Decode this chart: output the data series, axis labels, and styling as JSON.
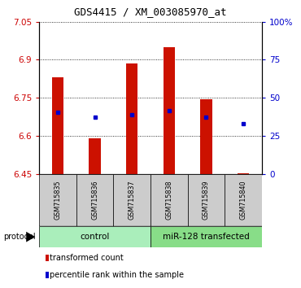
{
  "title": "GDS4415 / XM_003085970_at",
  "samples": [
    "GSM715835",
    "GSM715836",
    "GSM715837",
    "GSM715838",
    "GSM715839",
    "GSM715840"
  ],
  "bar_bottom": 6.45,
  "bar_top": [
    6.83,
    6.59,
    6.885,
    6.95,
    6.745,
    6.455
  ],
  "percentile_values": [
    6.695,
    6.675,
    6.685,
    6.7,
    6.675,
    6.65
  ],
  "ylim_left": [
    6.45,
    7.05
  ],
  "ylim_right": [
    0,
    100
  ],
  "yticks_left": [
    6.45,
    6.6,
    6.75,
    6.9,
    7.05
  ],
  "yticks_right": [
    0,
    25,
    50,
    75,
    100
  ],
  "ytick_labels_right": [
    "0",
    "25",
    "50",
    "75",
    "100%"
  ],
  "bar_color": "#cc1100",
  "percentile_color": "#0000cc",
  "group_labels": [
    "control",
    "miR-128 transfected"
  ],
  "group_colors": [
    "#aaeebb",
    "#88dd88"
  ],
  "protocol_label": "protocol",
  "legend_items": [
    "transformed count",
    "percentile rank within the sample"
  ],
  "legend_colors": [
    "#cc1100",
    "#0000cc"
  ],
  "left_axis_color": "#cc0000",
  "right_axis_color": "#0000cc",
  "figsize": [
    3.7,
    3.54
  ],
  "dpi": 100
}
